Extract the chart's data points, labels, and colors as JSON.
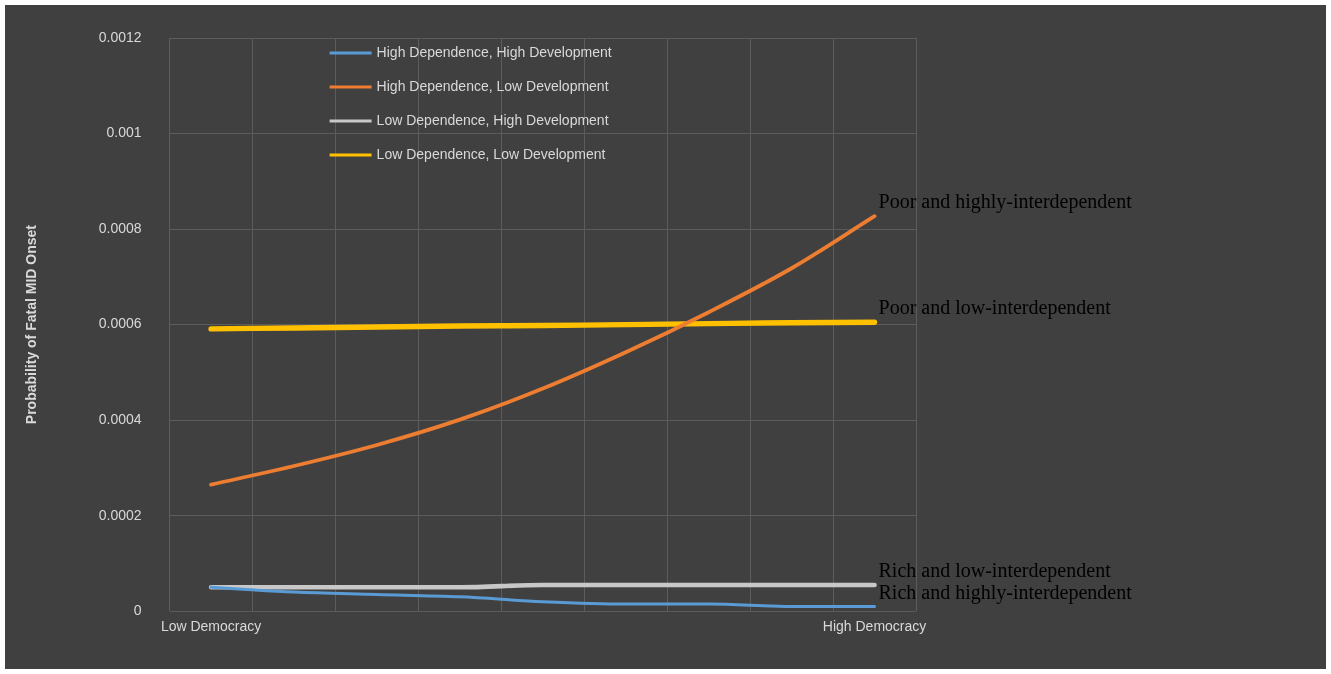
{
  "chart_data": {
    "type": "line",
    "ylabel": "Probability of Fatal MID Onset",
    "categories": [
      "Low Democracy",
      null,
      null,
      null,
      null,
      null,
      null,
      null,
      "High Democracy"
    ],
    "series": [
      {
        "name": "High Dependence, High Development",
        "color": "#5b9bd5",
        "values": [
          5e-05,
          4e-05,
          3.5e-05,
          3e-05,
          2e-05,
          1.5e-05,
          1.5e-05,
          1e-05,
          1e-05
        ]
      },
      {
        "name": "High Dependence, Low Development",
        "color": "#ed7d31",
        "values": [
          0.000265,
          0.000304,
          0.000348,
          0.000401,
          0.000466,
          0.000542,
          0.000626,
          0.000718,
          0.000827
        ]
      },
      {
        "name": "Low Dependence, High Development",
        "color": "#c8c8c8",
        "values": [
          5e-05,
          5e-05,
          5e-05,
          5e-05,
          5.5e-05,
          5.5e-05,
          5.5e-05,
          5.5e-05,
          5.5e-05
        ]
      },
      {
        "name": "Low Dependence, Low Development",
        "color": "#ffc000",
        "values": [
          0.000591,
          0.000593,
          0.000595,
          0.000597,
          0.000598,
          0.0006,
          0.000602,
          0.000604,
          0.000605
        ]
      }
    ],
    "ylim": [
      0,
      0.0012
    ],
    "yticks": [
      0,
      0.0002,
      0.0004,
      0.0006,
      0.0008,
      0.001,
      0.0012
    ],
    "grid": true,
    "legend": "top left",
    "marker": "none",
    "line_style": "solid",
    "annotations": [
      {
        "text": "Poor and highly-interdependent",
        "x": "High Democracy",
        "y": 0.000827
      },
      {
        "text": "Poor and low-interdependent",
        "x": "High Democracy",
        "y": 0.000605
      },
      {
        "text": "Rich and low-interdependent",
        "x": "High Democracy",
        "y": 5.5e-05
      },
      {
        "text": "Rich and highly-interdependent",
        "x": "High Democracy",
        "y": 1e-05
      }
    ]
  }
}
